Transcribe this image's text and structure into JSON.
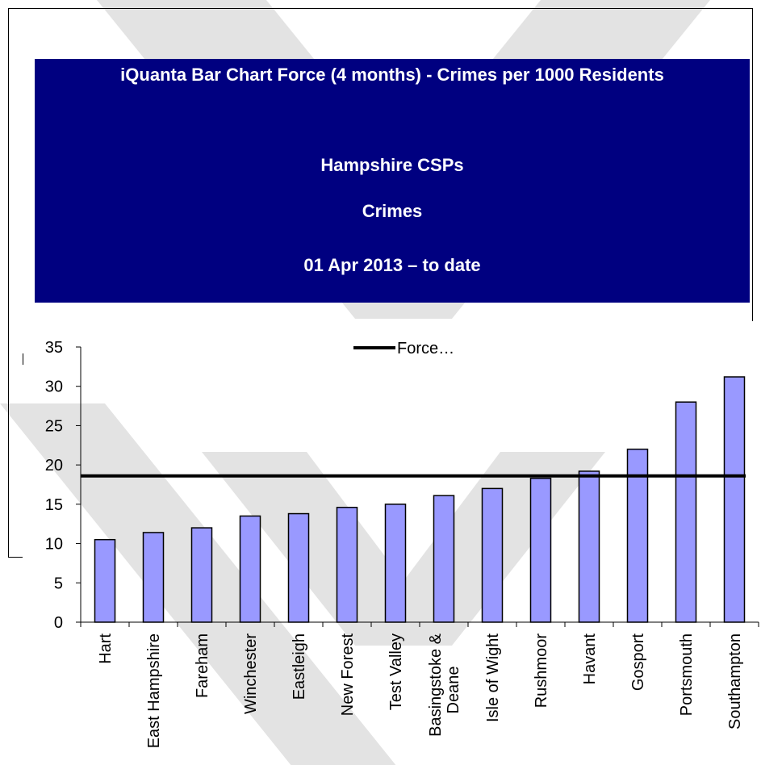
{
  "header": {
    "title": "iQuanta Bar Chart Force (4 months) - Crimes per 1000 Residents",
    "area": "Hampshire CSPs",
    "measure": "Crimes",
    "period": "01 Apr 2013 – to date"
  },
  "chart_data": {
    "type": "bar",
    "title": "",
    "xlabel": "",
    "ylabel": "",
    "categories": [
      "Hart",
      "East Hampshire",
      "Fareham",
      "Winchester",
      "Eastleigh",
      "New Forest",
      "Test Valley",
      "Basingstoke & Deane",
      "Isle of Wight",
      "Rushmoor",
      "Havant",
      "Gosport",
      "Portsmouth",
      "Southampton"
    ],
    "series": [
      {
        "values": [
          10.5,
          11.4,
          12.0,
          13.5,
          13.8,
          14.6,
          15.0,
          16.1,
          17.0,
          18.3,
          19.2,
          22.0,
          28.0,
          31.2
        ]
      }
    ],
    "reference_line": {
      "name": "Force…",
      "value": 18.6
    },
    "ylim": [
      0,
      35
    ],
    "yticks": [
      0,
      5,
      10,
      15,
      20,
      25,
      30,
      35
    ],
    "legend_position": "top",
    "grid": false,
    "colors": {
      "bar_fill": "#9999ff",
      "bar_stroke": "#000000",
      "line": "#000000"
    }
  }
}
